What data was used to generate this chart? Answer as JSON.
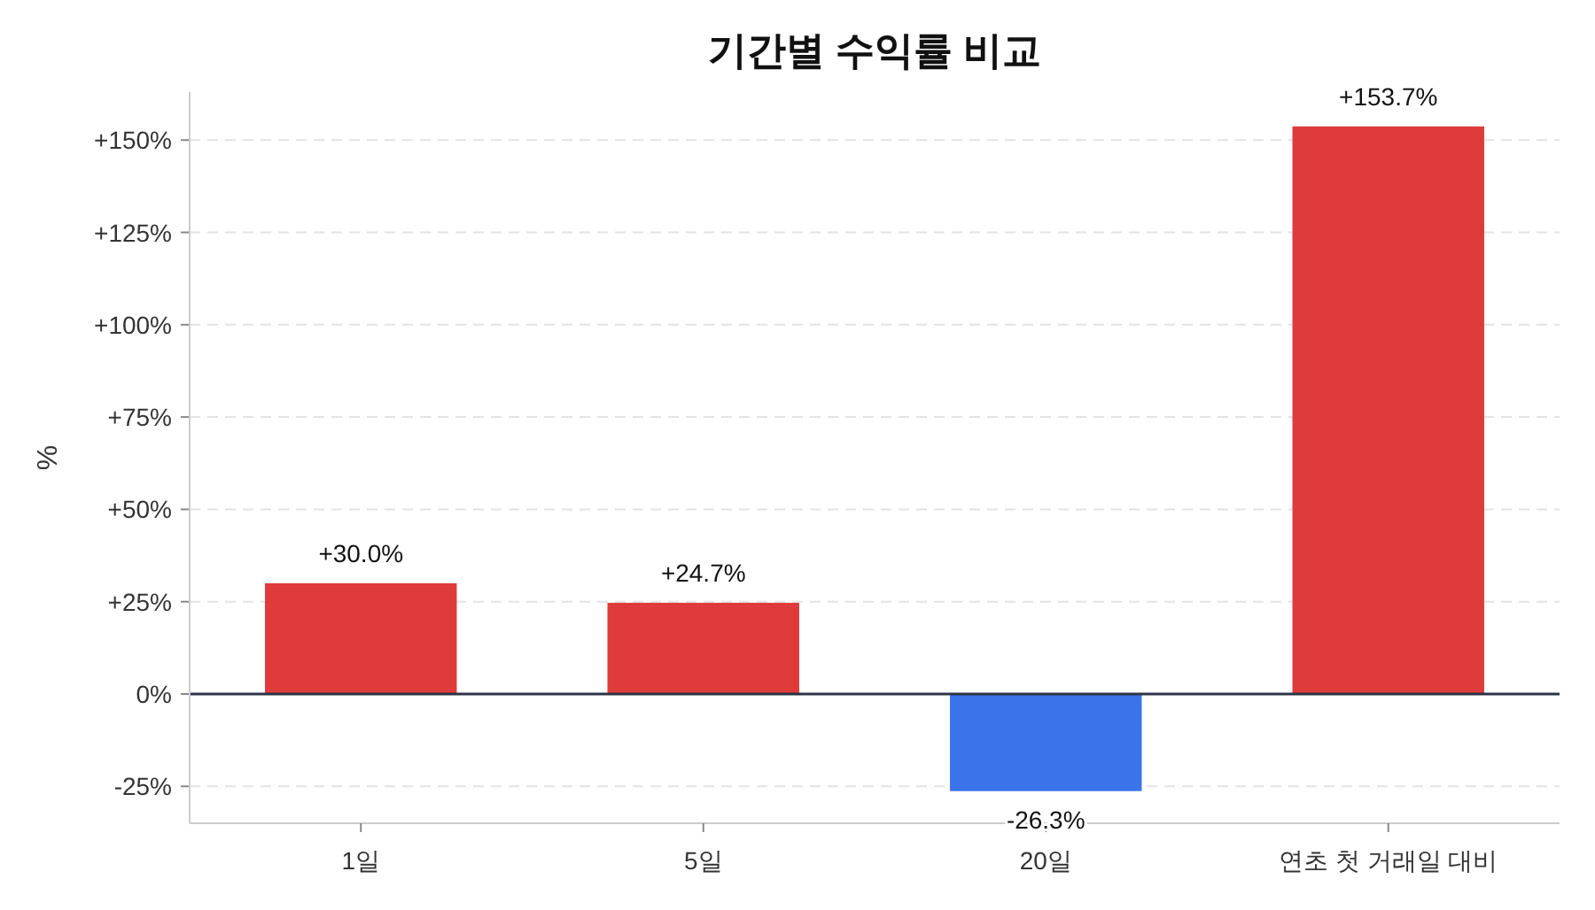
{
  "chart_data": {
    "type": "bar",
    "title": "기간별 수익률 비교",
    "ylabel": "%",
    "categories": [
      "1일",
      "5일",
      "20일",
      "연초 첫 거래일 대비"
    ],
    "values": [
      30.0,
      24.7,
      -26.3,
      153.7
    ],
    "colors": [
      "#e03b3b",
      "#e03b3b",
      "#3b74ea",
      "#e03b3b"
    ],
    "value_labels": [
      "+30.0%",
      "+24.7%",
      "-26.3%",
      "+153.7%"
    ],
    "ylim": [
      -35,
      163
    ],
    "yticks": [
      {
        "value": -25,
        "label": "-25%"
      },
      {
        "value": 0,
        "label": "0%"
      },
      {
        "value": 25,
        "label": "+25%"
      },
      {
        "value": 50,
        "label": "+50%"
      },
      {
        "value": 75,
        "label": "+75%"
      },
      {
        "value": 100,
        "label": "+100%"
      },
      {
        "value": 125,
        "label": "+125%"
      },
      {
        "value": 150,
        "label": "+150%"
      }
    ],
    "ref_lines": [
      {
        "axis": "y",
        "value": 0,
        "color": "#2b3445"
      }
    ],
    "grid": "y"
  }
}
